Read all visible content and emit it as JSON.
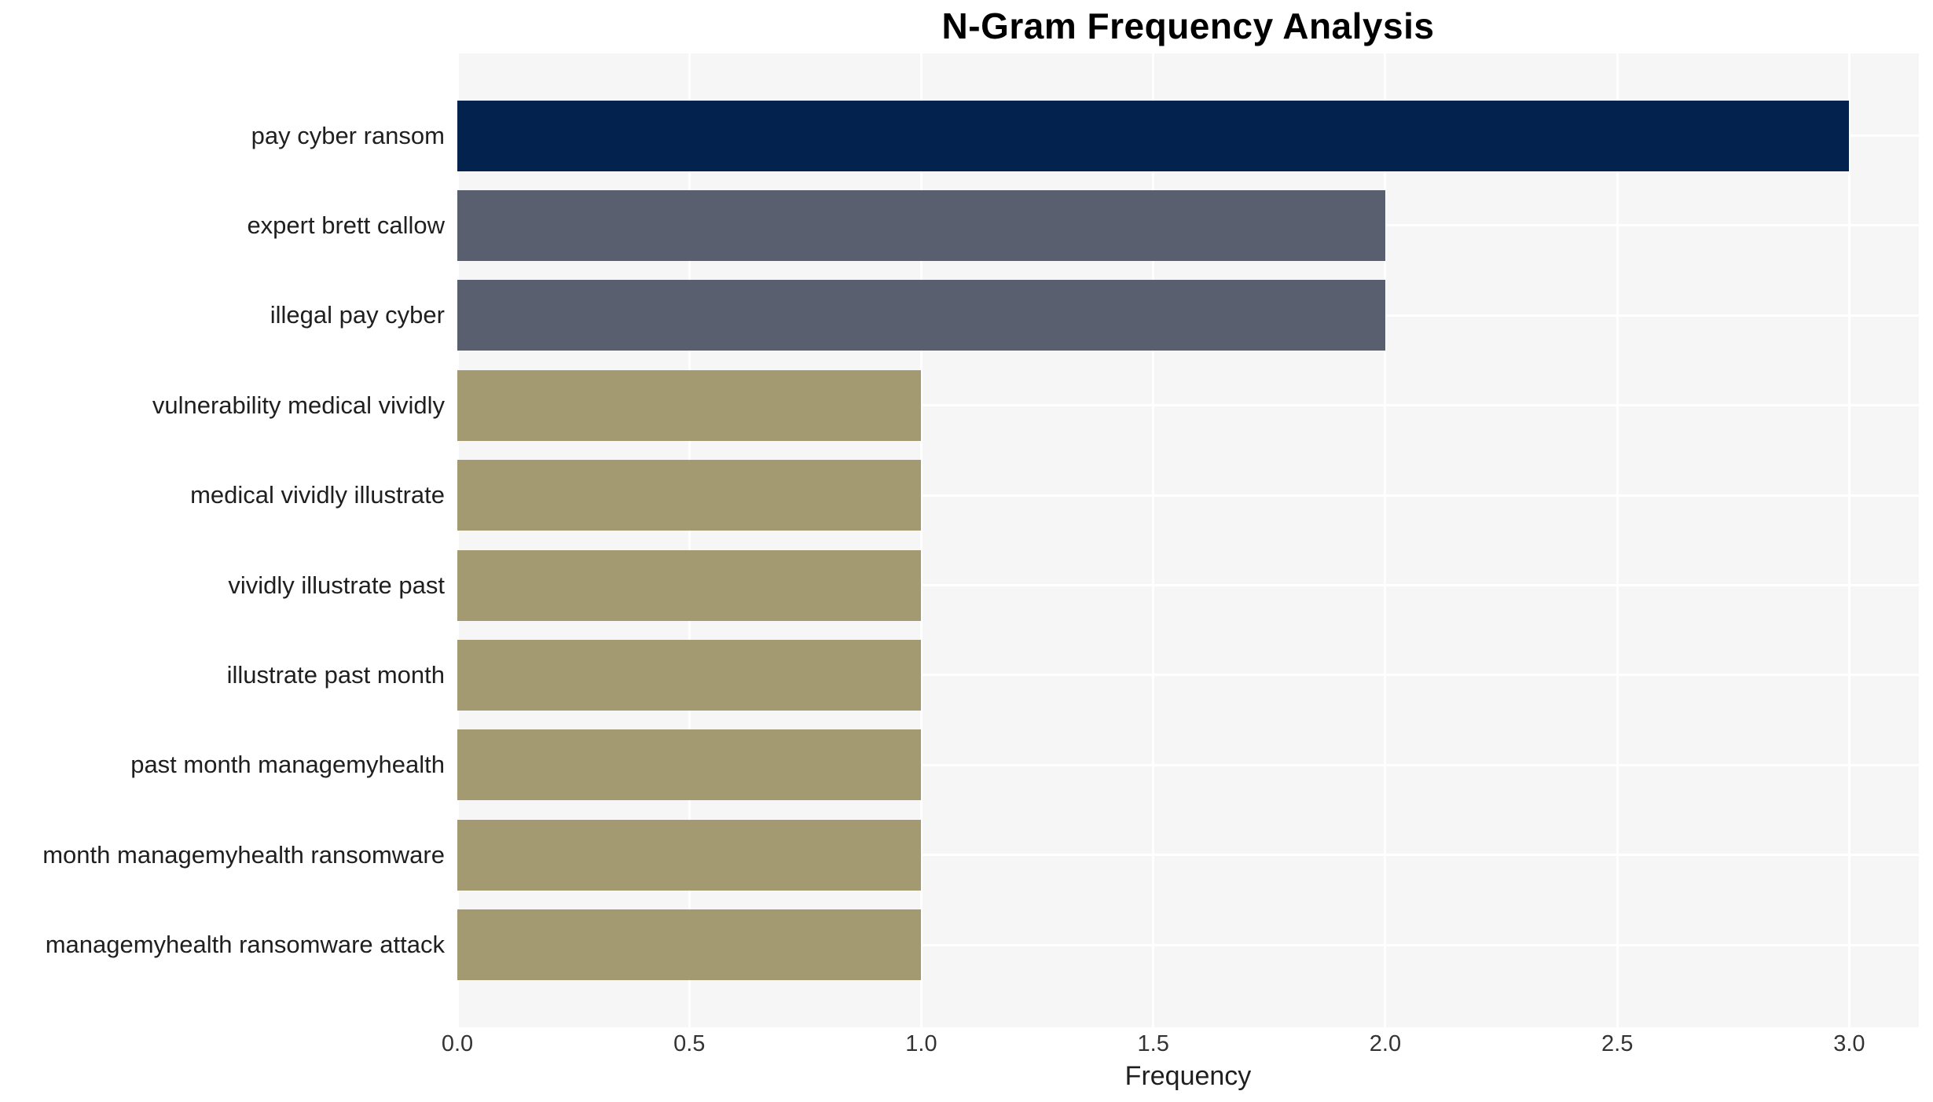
{
  "chart_data": {
    "type": "bar",
    "orientation": "horizontal",
    "title": "N-Gram Frequency Analysis",
    "xlabel": "Frequency",
    "ylabel": "",
    "categories": [
      "pay cyber ransom",
      "expert brett callow",
      "illegal pay cyber",
      "vulnerability medical vividly",
      "medical vividly illustrate",
      "vividly illustrate past",
      "illustrate past month",
      "past month managemyhealth",
      "month managemyhealth ransomware",
      "managemyhealth ransomware attack"
    ],
    "values": [
      3,
      2,
      2,
      1,
      1,
      1,
      1,
      1,
      1,
      1
    ],
    "bar_colors": [
      "#03224E",
      "#5A5F70",
      "#5A5F70",
      "#A49A72",
      "#A49A72",
      "#A49A72",
      "#A49A72",
      "#A49A72",
      "#A49A72",
      "#A49A72"
    ],
    "xlim": [
      0,
      3.15
    ],
    "x_tick_values": [
      0,
      0.5,
      1,
      1.5,
      2,
      2.5,
      3
    ],
    "x_tick_labels": [
      "0.0",
      "0.5",
      "1.0",
      "1.5",
      "2.0",
      "2.5",
      "3.0"
    ],
    "grid": true,
    "legend_position": "none",
    "colors": {
      "figure_background": "#FFFFFF",
      "panel_background": "#F6F6F7",
      "gridline": "#FFFFFF",
      "title_text": "#000000",
      "label_text": "#1F1F1F",
      "tick_text": "#333333"
    }
  }
}
